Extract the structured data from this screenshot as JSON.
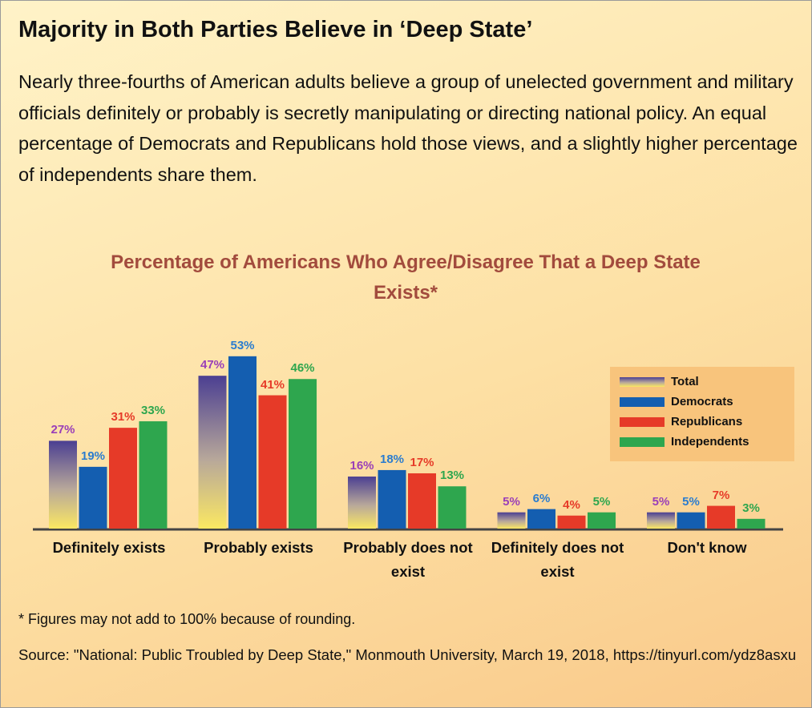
{
  "chart_data": {
    "type": "bar",
    "title": "Majority in Both Parties Believe in ‘Deep State’",
    "subtitle": "Nearly three-fourths of American adults believe a group of unelected government and military officials definitely or probably is secretly manipulating or directing national policy. An equal percentage of Democrats and Republicans hold those views, and a slightly higher percentage of independents share them.",
    "chart_title": "Percentage of Americans Who Agree/Disagree That a Deep State Exists*",
    "categories": [
      "Definitely exists",
      "Probably exists",
      "Probably does not exist",
      "Definitely does not exist",
      "Don't know"
    ],
    "series": [
      {
        "name": "Total",
        "color": "#4b3f92",
        "label_color": "#9a3fb8",
        "values": [
          27,
          47,
          16,
          5,
          5
        ],
        "value_labels": [
          "27%",
          "47%",
          "16%",
          "5%",
          "5%"
        ]
      },
      {
        "name": "Democrats",
        "color": "#145eb0",
        "label_color": "#2a7ccf",
        "values": [
          19,
          53,
          18,
          6,
          5
        ],
        "value_labels": [
          "19%",
          "53%",
          "18%",
          "6%",
          "5%"
        ]
      },
      {
        "name": "Republicans",
        "color": "#e63a28",
        "label_color": "#e63a28",
        "values": [
          31,
          41,
          17,
          4,
          7
        ],
        "value_labels": [
          "31%",
          "41%",
          "17%",
          "4%",
          "7%"
        ]
      },
      {
        "name": "Independents",
        "color": "#2ea64e",
        "label_color": "#2ea64e",
        "values": [
          33,
          46,
          13,
          5,
          3
        ],
        "value_labels": [
          "33%",
          "46%",
          "13%",
          "5%",
          "3%"
        ]
      }
    ],
    "legend": "right",
    "footnote": "* Figures may not add to 100% because of rounding.",
    "source": "Source: \"National: Public Troubled by Deep State,\" Monmouth University, March 19, 2018, https://tinyurl.com/ydz8asxu"
  }
}
